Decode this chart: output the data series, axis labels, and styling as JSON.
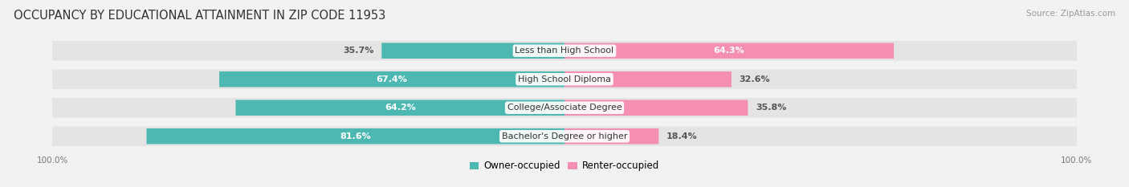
{
  "title": "OCCUPANCY BY EDUCATIONAL ATTAINMENT IN ZIP CODE 11953",
  "source": "Source: ZipAtlas.com",
  "categories": [
    "Less than High School",
    "High School Diploma",
    "College/Associate Degree",
    "Bachelor's Degree or higher"
  ],
  "owner_values": [
    35.7,
    67.4,
    64.2,
    81.6
  ],
  "renter_values": [
    64.3,
    32.6,
    35.8,
    18.4
  ],
  "owner_color": "#4db8b2",
  "renter_color": "#f48faf",
  "background_color": "#f2f2f2",
  "bar_bg_color": "#e4e4e4",
  "title_fontsize": 10.5,
  "source_fontsize": 7.5,
  "label_fontsize": 8,
  "axis_label_fontsize": 7.5,
  "legend_fontsize": 8.5
}
